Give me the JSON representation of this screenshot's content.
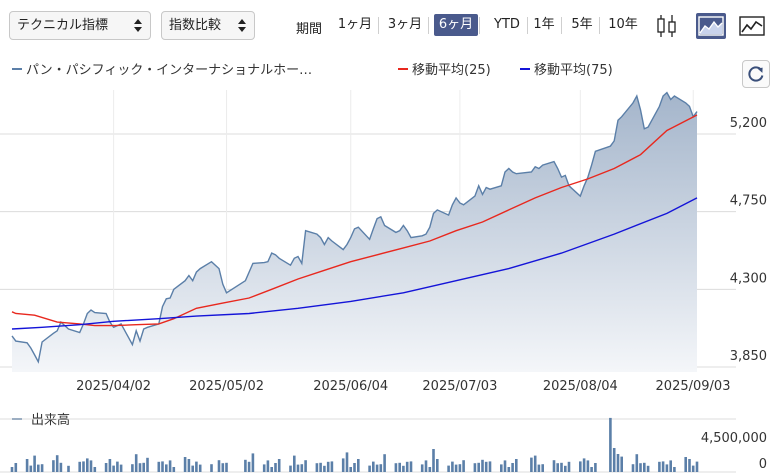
{
  "toolbar": {
    "technical_label": "テクニカル指標",
    "compare_label": "指数比較",
    "period_label": "期間",
    "ranges": [
      "1ヶ月",
      "3ヶ月",
      "6ヶ月",
      "YTD",
      "1年",
      "5年",
      "10年"
    ],
    "active_range": "6ヶ月",
    "chart_types": [
      "candlestick-icon",
      "area-chart-icon",
      "line-chart-icon"
    ],
    "active_chart_type": "area-chart-icon",
    "accent": "#4a5a8c"
  },
  "refresh_icon": "refresh-icon",
  "chart_data": {
    "type": "line",
    "legend": [
      {
        "name": "パン・パシフィック・インターナショナルホー…",
        "color": "#5b7fa8"
      },
      {
        "name": "移動平均(25)",
        "color": "#e8281e"
      },
      {
        "name": "移動平均(75)",
        "color": "#1414d8"
      }
    ],
    "legend_placement": "top",
    "x_ticks": [
      "2025/04/02",
      "2025/05/02",
      "2025/06/04",
      "2025/07/03",
      "2025/08/04",
      "2025/09/03"
    ],
    "x_tick_dates": [
      "2025-04-02",
      "2025-05-02",
      "2025-06-04",
      "2025-07-03",
      "2025-08-04",
      "2025-09-03"
    ],
    "y_ticks": [
      3850,
      4300,
      4750,
      5200
    ],
    "y_tick_labels": [
      "3,850",
      "4,300",
      "4,750",
      "5,200"
    ],
    "ylim": [
      3850,
      5460
    ],
    "grid": true,
    "price": [
      [
        "2025-03-06",
        4030
      ],
      [
        "2025-03-07",
        4000
      ],
      [
        "2025-03-10",
        3990
      ],
      [
        "2025-03-11",
        3960
      ],
      [
        "2025-03-12",
        3920
      ],
      [
        "2025-03-13",
        3880
      ],
      [
        "2025-03-14",
        3995
      ],
      [
        "2025-03-17",
        4045
      ],
      [
        "2025-03-18",
        4060
      ],
      [
        "2025-03-19",
        4110
      ],
      [
        "2025-03-21",
        4070
      ],
      [
        "2025-03-24",
        4050
      ],
      [
        "2025-03-25",
        4100
      ],
      [
        "2025-03-26",
        4160
      ],
      [
        "2025-03-27",
        4180
      ],
      [
        "2025-03-28",
        4165
      ],
      [
        "2025-03-31",
        4160
      ],
      [
        "2025-04-01",
        4110
      ],
      [
        "2025-04-02",
        4080
      ],
      [
        "2025-04-03",
        4090
      ],
      [
        "2025-04-04",
        4100
      ],
      [
        "2025-04-07",
        3980
      ],
      [
        "2025-04-08",
        4060
      ],
      [
        "2025-04-09",
        4000
      ],
      [
        "2025-04-10",
        4070
      ],
      [
        "2025-04-11",
        4080
      ],
      [
        "2025-04-14",
        4100
      ],
      [
        "2025-04-15",
        4200
      ],
      [
        "2025-04-16",
        4245
      ],
      [
        "2025-04-17",
        4250
      ],
      [
        "2025-04-18",
        4300
      ],
      [
        "2025-04-21",
        4350
      ],
      [
        "2025-04-22",
        4380
      ],
      [
        "2025-04-23",
        4350
      ],
      [
        "2025-04-24",
        4400
      ],
      [
        "2025-04-25",
        4420
      ],
      [
        "2025-04-28",
        4460
      ],
      [
        "2025-04-30",
        4420
      ],
      [
        "2025-05-01",
        4330
      ],
      [
        "2025-05-02",
        4280
      ],
      [
        "2025-05-07",
        4350
      ],
      [
        "2025-05-08",
        4400
      ],
      [
        "2025-05-09",
        4450
      ],
      [
        "2025-05-12",
        4455
      ],
      [
        "2025-05-13",
        4460
      ],
      [
        "2025-05-14",
        4510
      ],
      [
        "2025-05-15",
        4500
      ],
      [
        "2025-05-16",
        4480
      ],
      [
        "2025-05-19",
        4440
      ],
      [
        "2025-05-20",
        4480
      ],
      [
        "2025-05-21",
        4490
      ],
      [
        "2025-05-22",
        4450
      ],
      [
        "2025-05-23",
        4640
      ],
      [
        "2025-05-26",
        4620
      ],
      [
        "2025-05-27",
        4600
      ],
      [
        "2025-05-28",
        4560
      ],
      [
        "2025-05-29",
        4600
      ],
      [
        "2025-05-30",
        4580
      ],
      [
        "2025-06-02",
        4530
      ],
      [
        "2025-06-03",
        4560
      ],
      [
        "2025-06-04",
        4600
      ],
      [
        "2025-06-05",
        4650
      ],
      [
        "2025-06-06",
        4660
      ],
      [
        "2025-06-09",
        4590
      ],
      [
        "2025-06-10",
        4650
      ],
      [
        "2025-06-11",
        4710
      ],
      [
        "2025-06-12",
        4720
      ],
      [
        "2025-06-13",
        4670
      ],
      [
        "2025-06-16",
        4630
      ],
      [
        "2025-06-17",
        4640
      ],
      [
        "2025-06-18",
        4670
      ],
      [
        "2025-06-19",
        4640
      ],
      [
        "2025-06-20",
        4600
      ],
      [
        "2025-06-23",
        4610
      ],
      [
        "2025-06-24",
        4620
      ],
      [
        "2025-06-25",
        4660
      ],
      [
        "2025-06-26",
        4740
      ],
      [
        "2025-06-27",
        4760
      ],
      [
        "2025-06-30",
        4730
      ],
      [
        "2025-07-01",
        4790
      ],
      [
        "2025-07-02",
        4830
      ],
      [
        "2025-07-03",
        4800
      ],
      [
        "2025-07-04",
        4790
      ],
      [
        "2025-07-07",
        4840
      ],
      [
        "2025-07-08",
        4900
      ],
      [
        "2025-07-09",
        4850
      ],
      [
        "2025-07-10",
        4890
      ],
      [
        "2025-07-11",
        4880
      ],
      [
        "2025-07-14",
        4900
      ],
      [
        "2025-07-15",
        4980
      ],
      [
        "2025-07-16",
        5000
      ],
      [
        "2025-07-17",
        4980
      ],
      [
        "2025-07-18",
        4970
      ],
      [
        "2025-07-22",
        4980
      ],
      [
        "2025-07-23",
        5010
      ],
      [
        "2025-07-24",
        5000
      ],
      [
        "2025-07-25",
        5020
      ],
      [
        "2025-07-28",
        5040
      ],
      [
        "2025-07-29",
        5000
      ],
      [
        "2025-07-30",
        4950
      ],
      [
        "2025-07-31",
        4960
      ],
      [
        "2025-08-01",
        4900
      ],
      [
        "2025-08-04",
        4840
      ],
      [
        "2025-08-05",
        4900
      ],
      [
        "2025-08-06",
        4950
      ],
      [
        "2025-08-07",
        5020
      ],
      [
        "2025-08-08",
        5100
      ],
      [
        "2025-08-12",
        5130
      ],
      [
        "2025-08-13",
        5160
      ],
      [
        "2025-08-14",
        5280
      ],
      [
        "2025-08-15",
        5300
      ],
      [
        "2025-08-18",
        5380
      ],
      [
        "2025-08-19",
        5420
      ],
      [
        "2025-08-20",
        5340
      ],
      [
        "2025-08-21",
        5230
      ],
      [
        "2025-08-22",
        5240
      ],
      [
        "2025-08-25",
        5360
      ],
      [
        "2025-08-26",
        5420
      ],
      [
        "2025-08-27",
        5440
      ],
      [
        "2025-08-28",
        5400
      ],
      [
        "2025-08-29",
        5420
      ],
      [
        "2025-09-01",
        5380
      ],
      [
        "2025-09-02",
        5360
      ],
      [
        "2025-09-03",
        5300
      ],
      [
        "2025-09-04",
        5330
      ]
    ],
    "ma25": [
      [
        "2025-03-06",
        4170
      ],
      [
        "2025-03-07",
        4160
      ],
      [
        "2025-03-12",
        4150
      ],
      [
        "2025-03-18",
        4110
      ],
      [
        "2025-03-24",
        4100
      ],
      [
        "2025-03-28",
        4090
      ],
      [
        "2025-04-02",
        4090
      ],
      [
        "2025-04-08",
        4095
      ],
      [
        "2025-04-14",
        4100
      ],
      [
        "2025-04-18",
        4130
      ],
      [
        "2025-04-24",
        4190
      ],
      [
        "2025-05-01",
        4220
      ],
      [
        "2025-05-08",
        4250
      ],
      [
        "2025-05-14",
        4300
      ],
      [
        "2025-05-21",
        4360
      ],
      [
        "2025-05-28",
        4410
      ],
      [
        "2025-06-04",
        4460
      ],
      [
        "2025-06-11",
        4500
      ],
      [
        "2025-06-18",
        4540
      ],
      [
        "2025-06-25",
        4580
      ],
      [
        "2025-07-02",
        4640
      ],
      [
        "2025-07-09",
        4690
      ],
      [
        "2025-07-16",
        4760
      ],
      [
        "2025-07-23",
        4830
      ],
      [
        "2025-07-30",
        4890
      ],
      [
        "2025-08-06",
        4940
      ],
      [
        "2025-08-13",
        5000
      ],
      [
        "2025-08-20",
        5080
      ],
      [
        "2025-08-27",
        5220
      ],
      [
        "2025-09-04",
        5310
      ]
    ],
    "ma75": [
      [
        "2025-03-06",
        4070
      ],
      [
        "2025-03-14",
        4080
      ],
      [
        "2025-03-24",
        4095
      ],
      [
        "2025-04-02",
        4115
      ],
      [
        "2025-04-14",
        4130
      ],
      [
        "2025-04-24",
        4145
      ],
      [
        "2025-05-08",
        4160
      ],
      [
        "2025-05-21",
        4190
      ],
      [
        "2025-06-04",
        4230
      ],
      [
        "2025-06-18",
        4280
      ],
      [
        "2025-07-02",
        4350
      ],
      [
        "2025-07-16",
        4420
      ],
      [
        "2025-07-30",
        4510
      ],
      [
        "2025-08-13",
        4620
      ],
      [
        "2025-08-27",
        4740
      ],
      [
        "2025-09-04",
        4830
      ]
    ],
    "volume_label": "出来高",
    "volume_y_ticks": [
      0,
      4500000
    ],
    "volume_y_tick_labels": [
      "0",
      "4,500,000"
    ],
    "volume_ylim": [
      0,
      5100000
    ]
  }
}
